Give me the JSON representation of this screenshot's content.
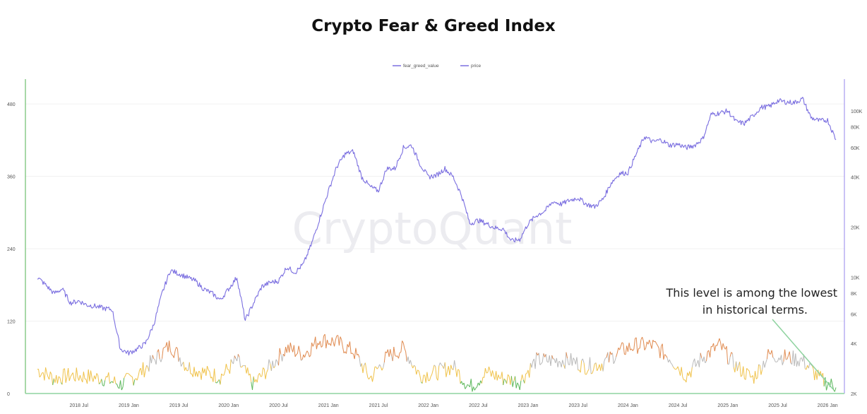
{
  "chart_data": {
    "type": "line",
    "title": "Crypto Fear & Greed Index",
    "watermark": "CryptoQuant",
    "legend": {
      "placement": "top-center"
    },
    "legend_labels": [
      "fear_greed_value",
      "price"
    ],
    "colors": {
      "price": "#7b6fe0",
      "extreme_fear": "#5cb85c",
      "fear": "#f0c24b",
      "neutral": "#b9b9b9",
      "greed": "#e08a4f",
      "left_axis": "#6fbf6f",
      "right_axis": "#a79af0",
      "annotation_arrow": "#8fd3a0"
    },
    "x_tick_labels": [
      "2018 Jul",
      "2019 Jan",
      "2019 Jul",
      "2020 Jan",
      "2020 Jul",
      "2021 Jan",
      "2021 Jul",
      "2022 Jan",
      "2022 Jul",
      "2023 Jan",
      "2023 Jul",
      "2024 Jan",
      "2024 Jul",
      "2025 Jan",
      "2025 Jul",
      "2026 Jan"
    ],
    "left_axis": {
      "ticks": [
        0,
        120,
        240,
        360,
        480
      ],
      "ylim": [
        0,
        500
      ]
    },
    "right_axis": {
      "scale": "log",
      "ticks": [
        2000,
        4000,
        6000,
        8000,
        10000,
        20000,
        40000,
        60000,
        80000,
        100000
      ],
      "tick_labels": [
        "2K",
        "4K",
        "6K",
        "8K",
        "10K",
        "20K",
        "40K",
        "60K",
        "80K",
        "100K"
      ],
      "ylim": [
        2000,
        130000
      ]
    },
    "series": [
      {
        "name": "price",
        "x": [
          "2018-02",
          "2018-03",
          "2018-04",
          "2018-05",
          "2018-06",
          "2018-07",
          "2018-08",
          "2018-09",
          "2018-10",
          "2018-11",
          "2018-12",
          "2019-01",
          "2019-02",
          "2019-03",
          "2019-04",
          "2019-05",
          "2019-06",
          "2019-07",
          "2019-08",
          "2019-09",
          "2019-10",
          "2019-11",
          "2019-12",
          "2020-01",
          "2020-02",
          "2020-03",
          "2020-04",
          "2020-05",
          "2020-06",
          "2020-07",
          "2020-08",
          "2020-09",
          "2020-10",
          "2020-11",
          "2020-12",
          "2021-01",
          "2021-02",
          "2021-03",
          "2021-04",
          "2021-05",
          "2021-06",
          "2021-07",
          "2021-08",
          "2021-09",
          "2021-10",
          "2021-11",
          "2021-12",
          "2022-01",
          "2022-02",
          "2022-03",
          "2022-04",
          "2022-05",
          "2022-06",
          "2022-07",
          "2022-08",
          "2022-09",
          "2022-10",
          "2022-11",
          "2022-12",
          "2023-01",
          "2023-02",
          "2023-03",
          "2023-04",
          "2023-05",
          "2023-06",
          "2023-07",
          "2023-08",
          "2023-09",
          "2023-10",
          "2023-11",
          "2023-12",
          "2024-01",
          "2024-02",
          "2024-03",
          "2024-04",
          "2024-05",
          "2024-06",
          "2024-07",
          "2024-08",
          "2024-09",
          "2024-10",
          "2024-11",
          "2024-12",
          "2025-01",
          "2025-02",
          "2025-03",
          "2025-04",
          "2025-05",
          "2025-06",
          "2025-07",
          "2025-08",
          "2025-09",
          "2025-10",
          "2025-11",
          "2025-12",
          "2026-01",
          "2026-02"
        ],
        "values": [
          10000,
          9000,
          8000,
          8500,
          7000,
          7200,
          6800,
          6700,
          6500,
          6400,
          3700,
          3500,
          3700,
          4000,
          5200,
          8000,
          11000,
          10500,
          10000,
          9500,
          8500,
          8000,
          7300,
          8500,
          10000,
          5500,
          7000,
          8800,
          9300,
          9500,
          11500,
          10700,
          12000,
          16000,
          23000,
          33000,
          46000,
          55000,
          57000,
          40000,
          35000,
          33000,
          45000,
          45000,
          60000,
          62000,
          48000,
          40000,
          41000,
          45000,
          40000,
          31000,
          21000,
          22000,
          21000,
          19800,
          19500,
          16500,
          16900,
          21000,
          23500,
          25000,
          28500,
          27500,
          29000,
          30000,
          27500,
          26500,
          29500,
          37000,
          42000,
          42500,
          55000,
          70000,
          65000,
          67000,
          62000,
          63000,
          60000,
          62000,
          68000,
          95000,
          97000,
          100000,
          86000,
          84000,
          93000,
          105000,
          106000,
          115000,
          113000,
          112000,
          118000,
          91000,
          87000,
          88000,
          67000
        ]
      },
      {
        "name": "fear_greed_value",
        "x": [
          "2018-02",
          "2018-04",
          "2018-06",
          "2018-08",
          "2018-10",
          "2018-12",
          "2019-02",
          "2019-04",
          "2019-06",
          "2019-08",
          "2019-10",
          "2019-12",
          "2020-02",
          "2020-04",
          "2020-06",
          "2020-08",
          "2020-10",
          "2020-12",
          "2021-02",
          "2021-04",
          "2021-06",
          "2021-08",
          "2021-10",
          "2021-12",
          "2022-02",
          "2022-04",
          "2022-06",
          "2022-08",
          "2022-10",
          "2022-12",
          "2023-02",
          "2023-04",
          "2023-06",
          "2023-08",
          "2023-10",
          "2023-12",
          "2024-02",
          "2024-04",
          "2024-06",
          "2024-08",
          "2024-10",
          "2024-12",
          "2025-02",
          "2025-04",
          "2025-06",
          "2025-08",
          "2025-10",
          "2025-12",
          "2026-02"
        ],
        "values": [
          40,
          25,
          30,
          28,
          25,
          15,
          30,
          55,
          80,
          45,
          35,
          28,
          55,
          15,
          45,
          75,
          65,
          90,
          85,
          70,
          25,
          60,
          75,
          30,
          35,
          45,
          10,
          35,
          25,
          20,
          55,
          55,
          55,
          45,
          50,
          70,
          80,
          80,
          60,
          30,
          60,
          80,
          45,
          25,
          65,
          60,
          55,
          25,
          10
        ]
      }
    ],
    "annotation": {
      "lines": [
        "This level is among the lowest",
        "in historical terms."
      ]
    }
  }
}
